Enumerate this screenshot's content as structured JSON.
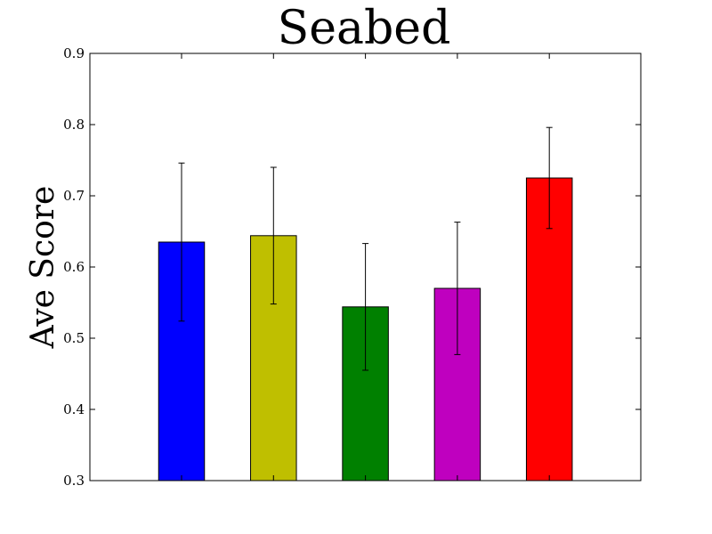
{
  "chart_data": {
    "type": "bar",
    "title": "Seabed",
    "xlabel": "",
    "ylabel": "Ave Score",
    "ylim": [
      0.3,
      0.9
    ],
    "yticks": [
      "0.3",
      "0.4",
      "0.5",
      "0.6",
      "0.7",
      "0.8",
      "0.9"
    ],
    "categories": [
      "",
      "",
      "",
      "",
      ""
    ],
    "values": [
      0.635,
      0.644,
      0.544,
      0.57,
      0.725
    ],
    "errors": [
      0.111,
      0.096,
      0.089,
      0.093,
      0.071
    ],
    "colors": [
      "#0000ff",
      "#bfbf00",
      "#008000",
      "#bf00bf",
      "#ff0000"
    ],
    "grid": false,
    "legend": "none"
  }
}
